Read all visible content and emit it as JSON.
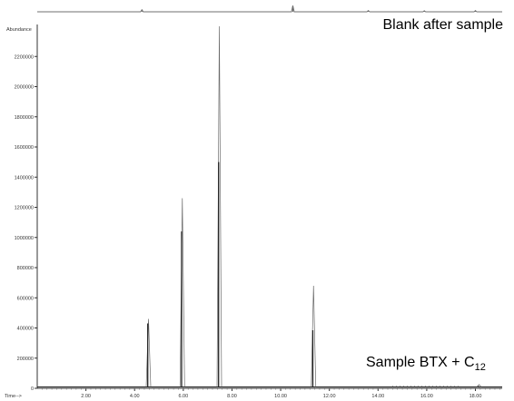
{
  "chart_data": {
    "type": "line",
    "ylabel": "Abundance",
    "xlabel": "Time-->",
    "xlim": [
      0.0,
      19.1
    ],
    "ylim": [
      0,
      2400000
    ],
    "x_ticks": [
      2,
      4,
      6,
      8,
      10,
      12,
      14,
      16,
      18
    ],
    "x_tick_labels": [
      "2.00",
      "4.00",
      "6.00",
      "8.00",
      "10.00",
      "12.00",
      "14.00",
      "16.00",
      "18.00"
    ],
    "y_ticks": [
      0,
      200000,
      400000,
      600000,
      800000,
      1000000,
      1200000,
      1400000,
      1600000,
      1800000,
      2000000,
      2200000
    ],
    "y_tick_labels": [
      "0",
      "200000",
      "400000",
      "600000",
      "800000",
      "1000000",
      "1200000",
      "1400000",
      "1600000",
      "1800000",
      "2000000",
      "2200000"
    ],
    "series": [
      {
        "name": "Blank after sample",
        "color": "#6f6f6f",
        "peaks": [
          {
            "x": 4.3,
            "y": 0.25
          },
          {
            "x": 10.5,
            "y": 0.75
          },
          {
            "x": 13.6,
            "y": 0.15
          },
          {
            "x": 15.9,
            "y": 0.12
          },
          {
            "x": 18.0,
            "y": 0.15
          }
        ]
      },
      {
        "name": "Sample BTX + C12",
        "color": "#222222",
        "peaks": [
          {
            "x": 4.57,
            "y": 460000,
            "inner": 430000
          },
          {
            "x": 5.96,
            "y": 1260000,
            "inner": 1040000
          },
          {
            "x": 7.48,
            "y": 2400000,
            "inner": 1500000
          },
          {
            "x": 11.35,
            "y": 680000,
            "inner": 385000
          },
          {
            "x": 18.15,
            "y": 25000,
            "inner": 15000
          }
        ]
      }
    ]
  },
  "labels": {
    "blank": "Blank after sample",
    "sample_main": "Sample BTX + C",
    "sample_sub": "12"
  }
}
